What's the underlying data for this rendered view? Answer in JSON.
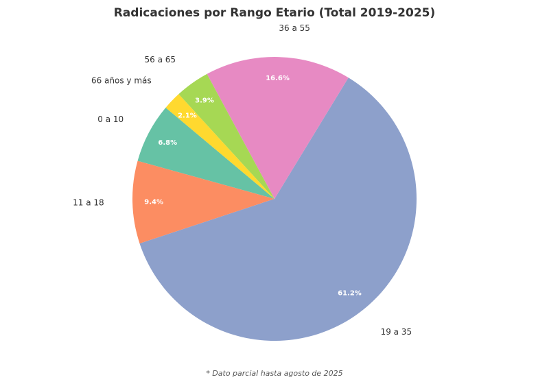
{
  "chart_data": {
    "type": "pie",
    "title": "Radicaciones por Rango Etario (Total 2019-2025)",
    "categories": [
      "0 a 10",
      "11 a 18",
      "19 a 35",
      "36 a 55",
      "56 a 65",
      "66 años y más"
    ],
    "values": [
      6.8,
      9.4,
      61.2,
      16.6,
      3.9,
      2.1
    ],
    "value_labels": [
      "6.8%",
      "9.4%",
      "61.2%",
      "16.6%",
      "3.9%",
      "2.1%"
    ],
    "colors": [
      "#66c2a5",
      "#fc8d62",
      "#8da0cb",
      "#e78ac3",
      "#a6d854",
      "#ffd92f"
    ],
    "footnote": "* Dato parcial hasta agosto de 2025"
  }
}
